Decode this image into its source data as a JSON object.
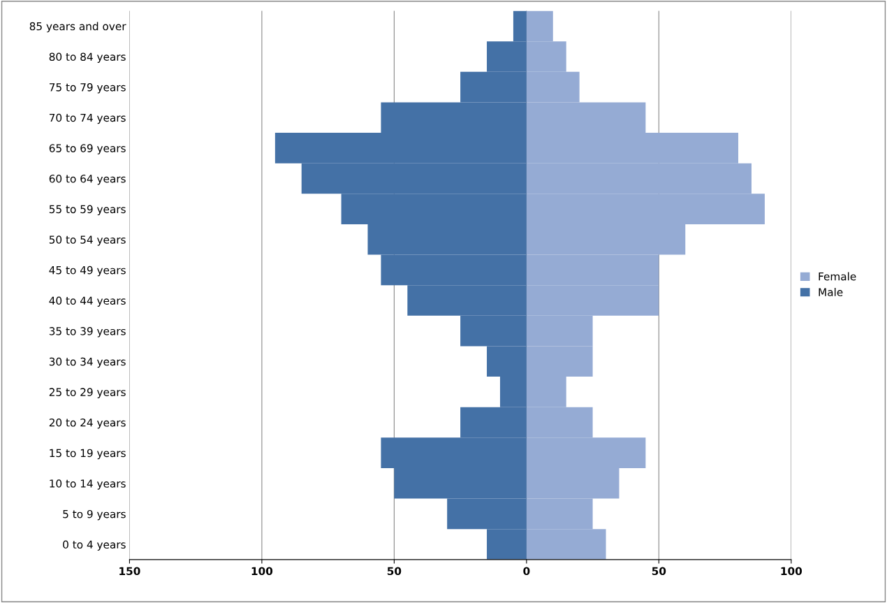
{
  "chart_data": {
    "type": "bar",
    "orientation": "horizontal",
    "stacked": true,
    "categories": [
      "85 years and over",
      "80 to 84 years",
      "75 to 79 years",
      "70 to 74 years",
      "65 to 69 years",
      "60 to 64 years",
      "55 to 59 years",
      "50 to 54 years",
      "45 to 49 years",
      "40 to 44 years",
      "35 to 39 years",
      "30 to 34 years",
      "25 to 29 years",
      "20 to 24 years",
      "15 to 19 years",
      "10 to 14 years",
      "5 to 9 years",
      "0 to 4 years"
    ],
    "series": [
      {
        "name": "Female",
        "color": "#95abd4",
        "values": [
          10,
          15,
          20,
          45,
          80,
          85,
          90,
          60,
          50,
          50,
          25,
          25,
          15,
          25,
          45,
          35,
          25,
          30
        ]
      },
      {
        "name": "Male",
        "color": "#4471a6",
        "values": [
          -5,
          -15,
          -25,
          -55,
          -95,
          -85,
          -70,
          -60,
          -55,
          -45,
          -25,
          -15,
          -10,
          -25,
          -55,
          -50,
          -30,
          -15
        ]
      }
    ],
    "xlim": [
      -150,
      100
    ],
    "xticks": [
      {
        "value": -150,
        "label": "150"
      },
      {
        "value": -100,
        "label": "100"
      },
      {
        "value": -50,
        "label": "50"
      },
      0,
      50,
      100
    ],
    "grid": "x",
    "legend": "right"
  }
}
